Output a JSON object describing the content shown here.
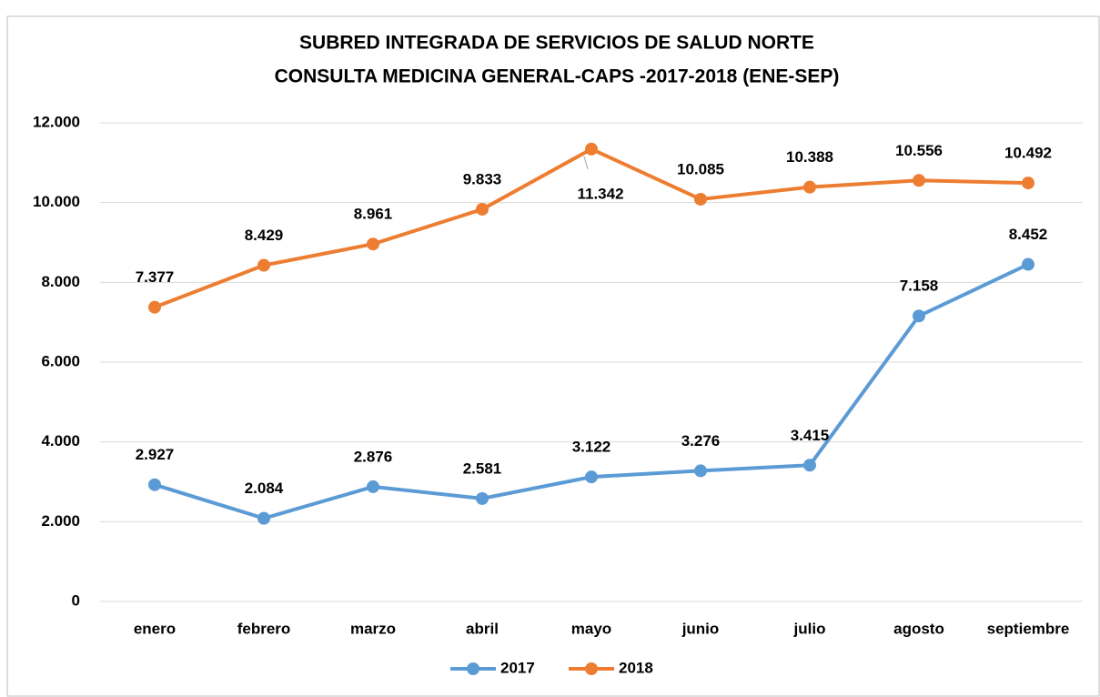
{
  "chart_data": {
    "type": "line",
    "title": [
      "SUBRED INTEGRADA DE SERVICIOS DE SALUD NORTE",
      "CONSULTA MEDICINA GENERAL-CAPS -2017-2018 (ENE-SEP)"
    ],
    "categories": [
      "enero",
      "febrero",
      "marzo",
      "abril",
      "mayo",
      "junio",
      "julio",
      "agosto",
      "septiembre"
    ],
    "series": [
      {
        "name": "2017",
        "color": "#5b9bd5",
        "values": [
          2927,
          2084,
          2876,
          2581,
          3122,
          3276,
          3415,
          7158,
          8452
        ],
        "value_labels": [
          "2.927",
          "2.084",
          "2.876",
          "2.581",
          "3.122",
          "3.276",
          "3.415",
          "7.158",
          "8.452"
        ]
      },
      {
        "name": "2018",
        "color": "#ed7d31",
        "values": [
          7377,
          8429,
          8961,
          9833,
          11342,
          10085,
          10388,
          10556,
          10492
        ],
        "value_labels": [
          "7.377",
          "8.429",
          "8.961",
          "9.833",
          "11.342",
          "10.085",
          "10.388",
          "10.556",
          "10.492"
        ]
      }
    ],
    "ylim": [
      0,
      12000
    ],
    "yticks": [
      0,
      {
        "value": 2000,
        "label": "2.000"
      },
      {
        "value": 4000,
        "label": "4.000"
      },
      {
        "value": 6000,
        "label": "6.000"
      },
      {
        "value": 8000,
        "label": "8.000"
      },
      {
        "value": 10000,
        "label": "10.000"
      },
      {
        "value": 12000,
        "label": "12.000"
      }
    ],
    "grid": true,
    "legend": "bottom"
  }
}
